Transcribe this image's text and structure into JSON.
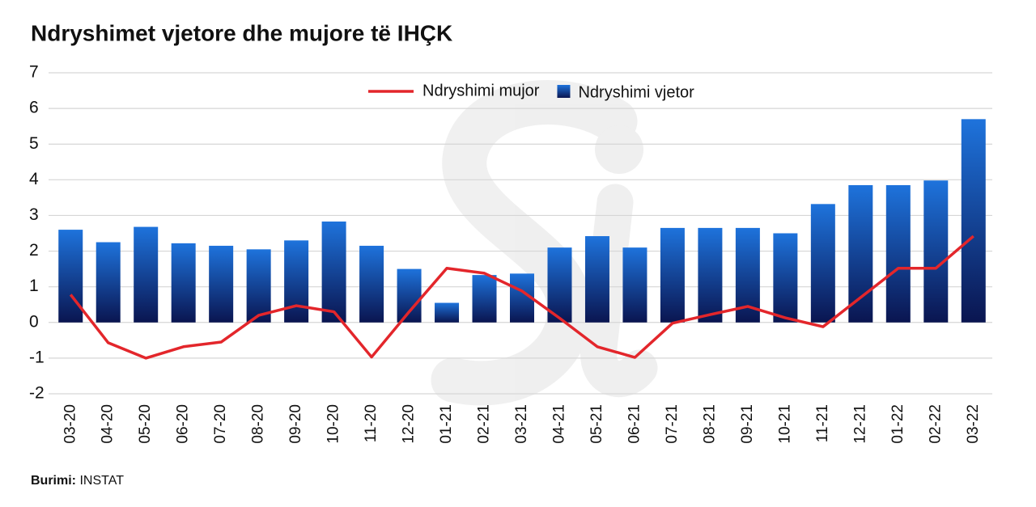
{
  "chart_data": {
    "type": "bar",
    "title": "Ndryshimet vjetore dhe mujore të IHÇK",
    "categories": [
      "03-20",
      "04-20",
      "05-20",
      "06-20",
      "07-20",
      "08-20",
      "09-20",
      "10-20",
      "11-20",
      "12-20",
      "01-21",
      "02-21",
      "03-21",
      "04-21",
      "05-21",
      "06-21",
      "07-21",
      "08-21",
      "09-21",
      "10-21",
      "11-21",
      "12-21",
      "01-22",
      "02-22",
      "03-22"
    ],
    "series": [
      {
        "name": "Ndryshimi mujor",
        "type": "line",
        "color": "#e3262b",
        "values": [
          0.78,
          -0.57,
          -1.0,
          -0.68,
          -0.55,
          0.2,
          0.47,
          0.3,
          -0.97,
          0.3,
          1.52,
          1.38,
          0.88,
          0.12,
          -0.68,
          -0.98,
          -0.02,
          0.22,
          0.45,
          0.13,
          -0.12,
          0.7,
          1.52,
          1.52,
          2.42
        ]
      },
      {
        "name": "Ndryshimi vjetor",
        "type": "bar",
        "color": "#1e73dc",
        "values": [
          2.6,
          2.25,
          2.68,
          2.22,
          2.15,
          2.05,
          2.3,
          2.83,
          2.15,
          1.5,
          0.55,
          1.33,
          1.37,
          2.1,
          2.42,
          2.1,
          2.65,
          2.65,
          2.65,
          2.5,
          3.32,
          3.85,
          3.85,
          3.98,
          5.7
        ]
      }
    ],
    "ylim": [
      -2,
      7
    ],
    "yticks": [
      -2,
      -1,
      0,
      1,
      2,
      3,
      4,
      5,
      6,
      7
    ],
    "grid": true,
    "legend": "top",
    "source_label": "Burimi:",
    "source": "INSTAT"
  }
}
